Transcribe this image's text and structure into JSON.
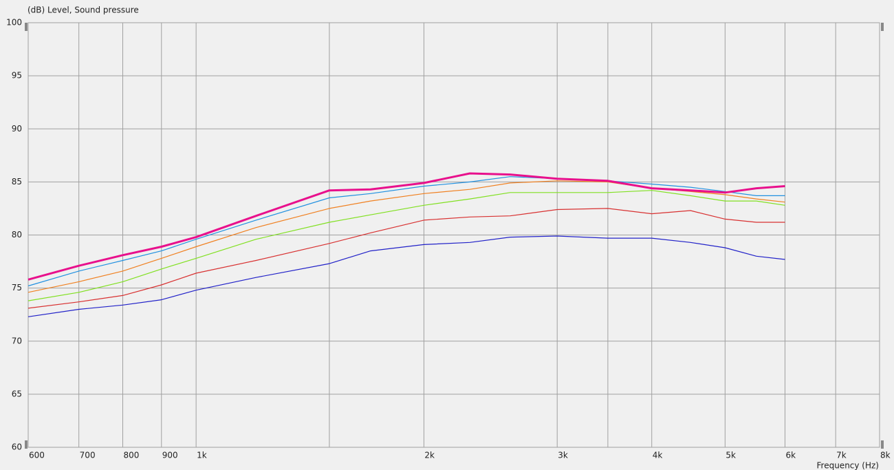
{
  "chart_data": {
    "type": "line",
    "title": "(dB)  Level, Sound pressure",
    "xlabel": "Frequency  (Hz)",
    "log_x": true,
    "grid": true,
    "xlim": [
      600,
      8000
    ],
    "ylim": [
      60,
      100
    ],
    "yticks": [
      60,
      65,
      70,
      75,
      80,
      85,
      90,
      95,
      100
    ],
    "xticks": [
      600,
      700,
      800,
      900,
      {
        "value": 1000,
        "label": "1k"
      },
      {
        "value": 2000,
        "label": "2k"
      },
      {
        "value": 3000,
        "label": "3k"
      },
      {
        "value": 4000,
        "label": "4k"
      },
      {
        "value": 5000,
        "label": "5k"
      },
      {
        "value": 6000,
        "label": "6k"
      },
      {
        "value": 7000,
        "label": "7k"
      },
      {
        "value": 8000,
        "label": "8k"
      }
    ],
    "xminor": [
      1500,
      3500
    ],
    "x": [
      600,
      700,
      800,
      900,
      1000,
      1200,
      1500,
      1700,
      2000,
      2300,
      2600,
      3000,
      3500,
      4000,
      4500,
      5000,
      5500,
      6000
    ],
    "series": [
      {
        "color": "#2020c8",
        "values": [
          72.3,
          73.0,
          73.4,
          73.9,
          74.8,
          76.0,
          77.3,
          78.5,
          79.1,
          79.3,
          79.8,
          79.9,
          79.7,
          79.7,
          79.3,
          78.8,
          78.0,
          77.7
        ]
      },
      {
        "color": "#d83030",
        "values": [
          73.1,
          73.7,
          74.3,
          75.3,
          76.4,
          77.6,
          79.2,
          80.2,
          81.4,
          81.7,
          81.8,
          82.4,
          82.5,
          82.0,
          82.3,
          81.5,
          81.2,
          81.2
        ]
      },
      {
        "color": "#80e020",
        "values": [
          73.8,
          74.6,
          75.6,
          76.8,
          77.8,
          79.6,
          81.2,
          81.9,
          82.8,
          83.4,
          84.0,
          84.0,
          84.0,
          84.2,
          83.7,
          83.2,
          83.2,
          82.8
        ]
      },
      {
        "color": "#f08020",
        "values": [
          74.6,
          75.6,
          76.6,
          77.8,
          78.9,
          80.7,
          82.5,
          83.2,
          83.9,
          84.3,
          84.9,
          85.1,
          85.0,
          84.4,
          84.1,
          83.8,
          83.4,
          83.1
        ]
      },
      {
        "color": "#2090e0",
        "values": [
          75.2,
          76.6,
          77.6,
          78.5,
          79.6,
          81.4,
          83.5,
          83.9,
          84.6,
          85.0,
          85.5,
          85.3,
          85.1,
          84.8,
          84.5,
          84.1,
          83.7,
          83.7
        ]
      },
      {
        "color": "#e8108c",
        "values": [
          75.8,
          77.1,
          78.1,
          78.9,
          79.8,
          81.8,
          84.2,
          84.3,
          84.9,
          85.8,
          85.7,
          85.3,
          85.1,
          84.4,
          84.2,
          84.0,
          84.4,
          84.6
        ]
      }
    ]
  }
}
